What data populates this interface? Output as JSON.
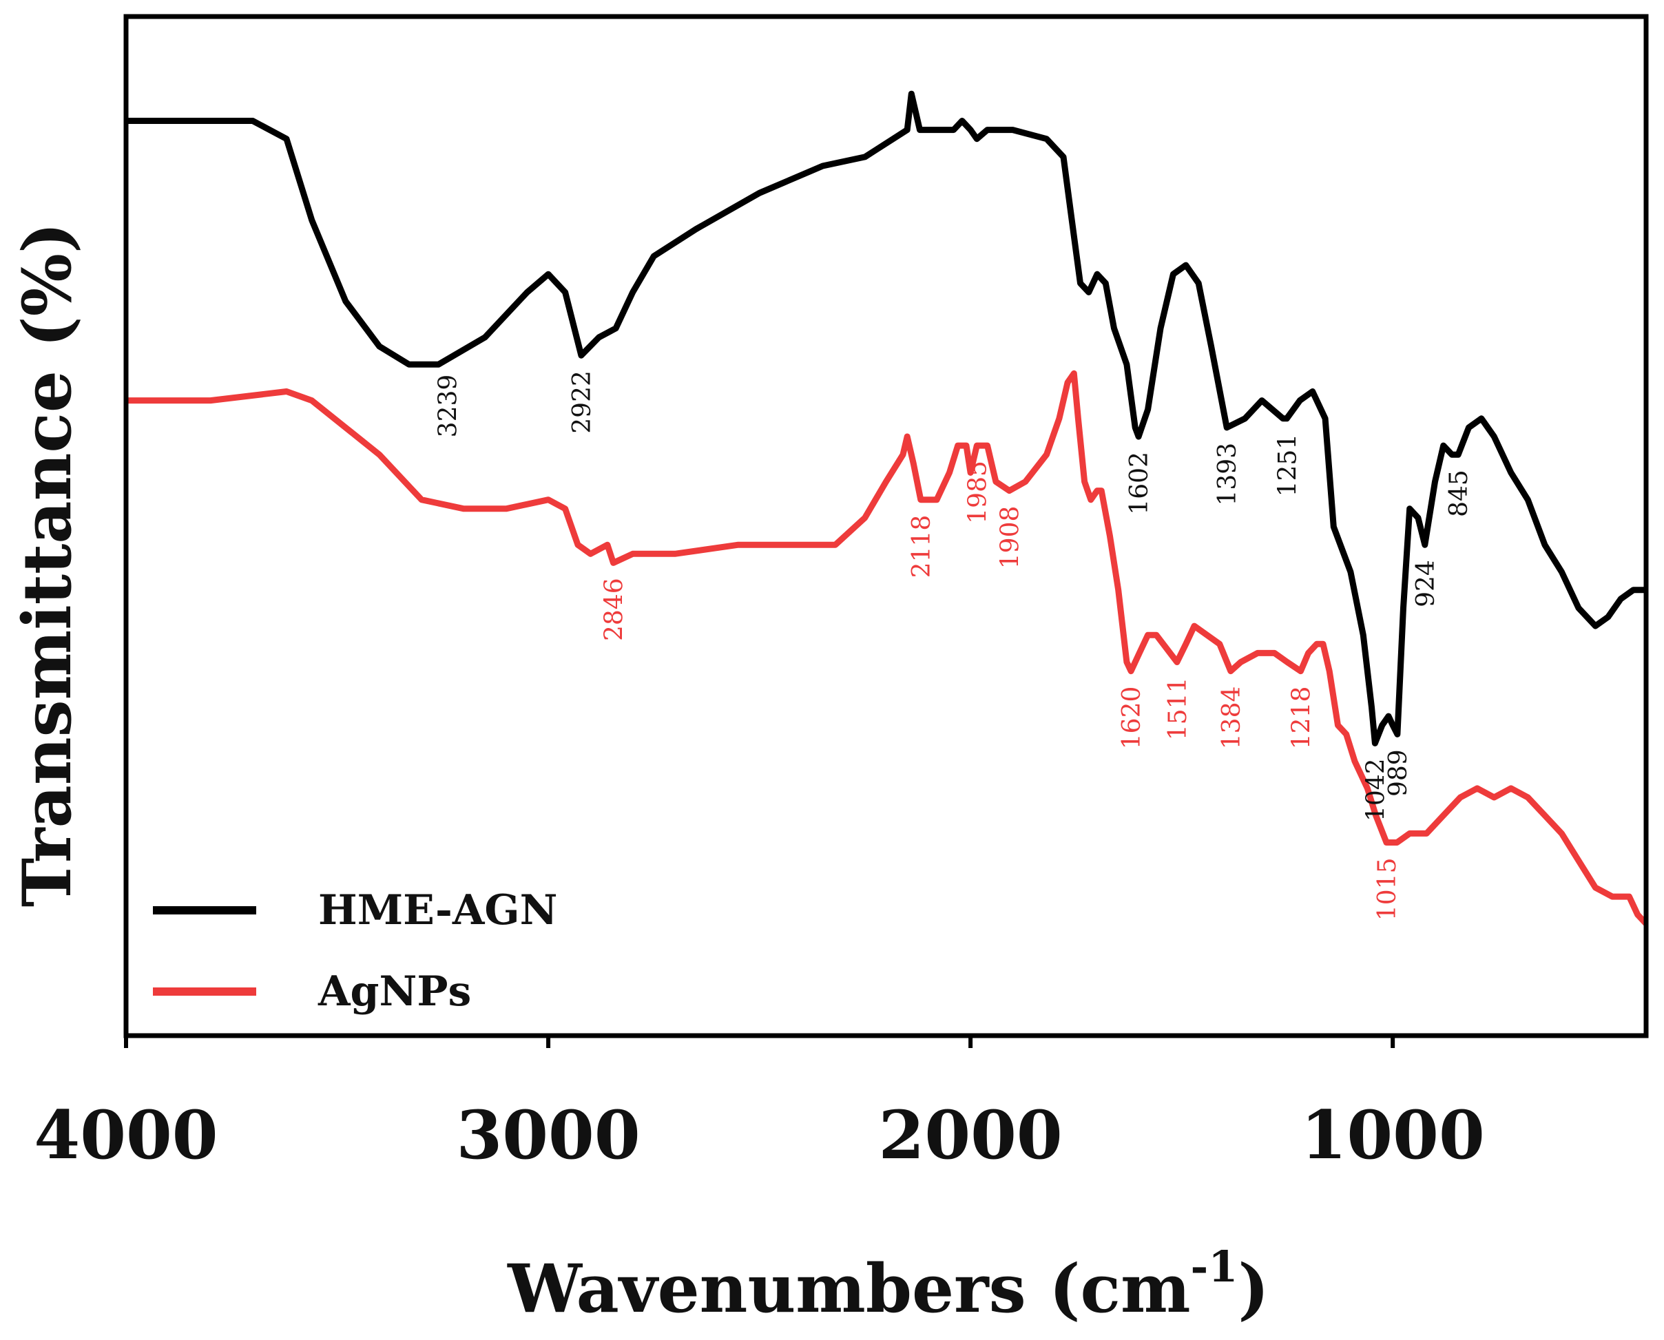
{
  "chart_data": {
    "type": "line",
    "title": "",
    "xlabel": "Wavenumbers (cm",
    "xlabel_sup": "-1",
    "xlabel_close": ")",
    "ylabel": "Transmittance (%)",
    "xlim": [
      4000,
      400
    ],
    "x_reversed": true,
    "ylim": [
      0,
      100
    ],
    "y_ticks_shown": false,
    "grid": false,
    "x_ticks": [
      {
        "value": 4000,
        "label": "4000"
      },
      {
        "value": 3000,
        "label": "3000"
      },
      {
        "value": 2000,
        "label": "2000"
      },
      {
        "value": 1000,
        "label": "1000"
      }
    ],
    "legend": {
      "placement": "bottom-left"
    },
    "series": [
      {
        "name": "HME-AGN",
        "color": "#000000",
        "points": [
          [
            4000,
            95
          ],
          [
            3700,
            95
          ],
          [
            3620,
            93
          ],
          [
            3560,
            84
          ],
          [
            3480,
            75
          ],
          [
            3400,
            70
          ],
          [
            3330,
            68
          ],
          [
            3260,
            68
          ],
          [
            3150,
            71
          ],
          [
            3050,
            76
          ],
          [
            3000,
            78
          ],
          [
            2960,
            76
          ],
          [
            2922,
            69
          ],
          [
            2880,
            71
          ],
          [
            2840,
            72
          ],
          [
            2800,
            76
          ],
          [
            2750,
            80
          ],
          [
            2650,
            83
          ],
          [
            2500,
            87
          ],
          [
            2350,
            90
          ],
          [
            2250,
            91
          ],
          [
            2150,
            94
          ],
          [
            2140,
            98
          ],
          [
            2120,
            94
          ],
          [
            2080,
            94
          ],
          [
            2040,
            94
          ],
          [
            2020,
            95
          ],
          [
            2000,
            94
          ],
          [
            1985,
            93
          ],
          [
            1960,
            94
          ],
          [
            1900,
            94
          ],
          [
            1820,
            93
          ],
          [
            1780,
            91
          ],
          [
            1760,
            84
          ],
          [
            1740,
            77
          ],
          [
            1720,
            76
          ],
          [
            1700,
            78
          ],
          [
            1680,
            77
          ],
          [
            1660,
            72
          ],
          [
            1630,
            68
          ],
          [
            1610,
            61
          ],
          [
            1602,
            60
          ],
          [
            1580,
            63
          ],
          [
            1550,
            72
          ],
          [
            1520,
            78
          ],
          [
            1490,
            79
          ],
          [
            1460,
            77
          ],
          [
            1430,
            70
          ],
          [
            1393,
            61
          ],
          [
            1350,
            62
          ],
          [
            1310,
            64
          ],
          [
            1260,
            62
          ],
          [
            1251,
            62
          ],
          [
            1220,
            64
          ],
          [
            1190,
            65
          ],
          [
            1160,
            62
          ],
          [
            1140,
            50
          ],
          [
            1100,
            45
          ],
          [
            1070,
            38
          ],
          [
            1050,
            30
          ],
          [
            1042,
            26
          ],
          [
            1025,
            28
          ],
          [
            1010,
            29
          ],
          [
            1000,
            28
          ],
          [
            989,
            27
          ],
          [
            975,
            41
          ],
          [
            960,
            52
          ],
          [
            940,
            51
          ],
          [
            924,
            48
          ],
          [
            900,
            55
          ],
          [
            880,
            59
          ],
          [
            860,
            58
          ],
          [
            845,
            58
          ],
          [
            820,
            61
          ],
          [
            790,
            62
          ],
          [
            760,
            60
          ],
          [
            720,
            56
          ],
          [
            680,
            53
          ],
          [
            640,
            48
          ],
          [
            600,
            45
          ],
          [
            560,
            41
          ],
          [
            520,
            39
          ],
          [
            490,
            40
          ],
          [
            460,
            42
          ],
          [
            430,
            43
          ],
          [
            400,
            43
          ]
        ]
      },
      {
        "name": "AgNPs",
        "color": "#ee3b3b",
        "points": [
          [
            4000,
            64
          ],
          [
            3800,
            64
          ],
          [
            3620,
            65
          ],
          [
            3560,
            64
          ],
          [
            3400,
            58
          ],
          [
            3300,
            53
          ],
          [
            3200,
            52
          ],
          [
            3100,
            52
          ],
          [
            3000,
            53
          ],
          [
            2960,
            52
          ],
          [
            2930,
            48
          ],
          [
            2900,
            47
          ],
          [
            2860,
            48
          ],
          [
            2846,
            46
          ],
          [
            2800,
            47
          ],
          [
            2700,
            47
          ],
          [
            2550,
            48
          ],
          [
            2400,
            48
          ],
          [
            2320,
            48
          ],
          [
            2250,
            51
          ],
          [
            2200,
            55
          ],
          [
            2160,
            58
          ],
          [
            2150,
            60
          ],
          [
            2135,
            57
          ],
          [
            2118,
            53
          ],
          [
            2080,
            53
          ],
          [
            2050,
            56
          ],
          [
            2030,
            59
          ],
          [
            2010,
            59
          ],
          [
            2000,
            56
          ],
          [
            1985,
            59
          ],
          [
            1960,
            59
          ],
          [
            1940,
            55
          ],
          [
            1908,
            54
          ],
          [
            1870,
            55
          ],
          [
            1820,
            58
          ],
          [
            1790,
            62
          ],
          [
            1770,
            66
          ],
          [
            1755,
            67
          ],
          [
            1745,
            62
          ],
          [
            1730,
            55
          ],
          [
            1715,
            53
          ],
          [
            1700,
            54
          ],
          [
            1690,
            54
          ],
          [
            1670,
            49
          ],
          [
            1650,
            43
          ],
          [
            1630,
            35
          ],
          [
            1620,
            34
          ],
          [
            1600,
            36
          ],
          [
            1580,
            38
          ],
          [
            1560,
            38
          ],
          [
            1511,
            35
          ],
          [
            1490,
            37
          ],
          [
            1470,
            39
          ],
          [
            1440,
            38
          ],
          [
            1410,
            37
          ],
          [
            1384,
            34
          ],
          [
            1360,
            35
          ],
          [
            1320,
            36
          ],
          [
            1280,
            36
          ],
          [
            1250,
            35
          ],
          [
            1218,
            34
          ],
          [
            1200,
            36
          ],
          [
            1180,
            37
          ],
          [
            1165,
            37
          ],
          [
            1150,
            34
          ],
          [
            1130,
            28
          ],
          [
            1110,
            27
          ],
          [
            1090,
            24
          ],
          [
            1060,
            21
          ],
          [
            1040,
            18
          ],
          [
            1015,
            15
          ],
          [
            990,
            15
          ],
          [
            960,
            16
          ],
          [
            920,
            16
          ],
          [
            880,
            18
          ],
          [
            840,
            20
          ],
          [
            800,
            21
          ],
          [
            760,
            20
          ],
          [
            720,
            21
          ],
          [
            680,
            20
          ],
          [
            640,
            18
          ],
          [
            600,
            16
          ],
          [
            560,
            13
          ],
          [
            520,
            10
          ],
          [
            480,
            9
          ],
          [
            440,
            9
          ],
          [
            420,
            7
          ],
          [
            400,
            6
          ]
        ]
      }
    ],
    "annotations": [
      {
        "text": "3239",
        "series": "HME-AGN",
        "x": 3239
      },
      {
        "text": "2922",
        "series": "HME-AGN",
        "x": 2922
      },
      {
        "text": "1602",
        "series": "HME-AGN",
        "x": 1602
      },
      {
        "text": "1393",
        "series": "HME-AGN",
        "x": 1393
      },
      {
        "text": "1251",
        "series": "HME-AGN",
        "x": 1251
      },
      {
        "text": "1042",
        "series": "HME-AGN",
        "x": 1042
      },
      {
        "text": "989",
        "series": "HME-AGN",
        "x": 989
      },
      {
        "text": "924",
        "series": "HME-AGN",
        "x": 924
      },
      {
        "text": "845",
        "series": "HME-AGN",
        "x": 845
      },
      {
        "text": "2846",
        "series": "AgNPs",
        "x": 2846
      },
      {
        "text": "2118",
        "series": "AgNPs",
        "x": 2118
      },
      {
        "text": "1985",
        "series": "AgNPs",
        "x": 1985
      },
      {
        "text": "1908",
        "series": "AgNPs",
        "x": 1908
      },
      {
        "text": "1620",
        "series": "AgNPs",
        "x": 1620
      },
      {
        "text": "1511",
        "series": "AgNPs",
        "x": 1511
      },
      {
        "text": "1384",
        "series": "AgNPs",
        "x": 1384
      },
      {
        "text": "1218",
        "series": "AgNPs",
        "x": 1218
      },
      {
        "text": "1015",
        "series": "AgNPs",
        "x": 1015
      }
    ]
  }
}
